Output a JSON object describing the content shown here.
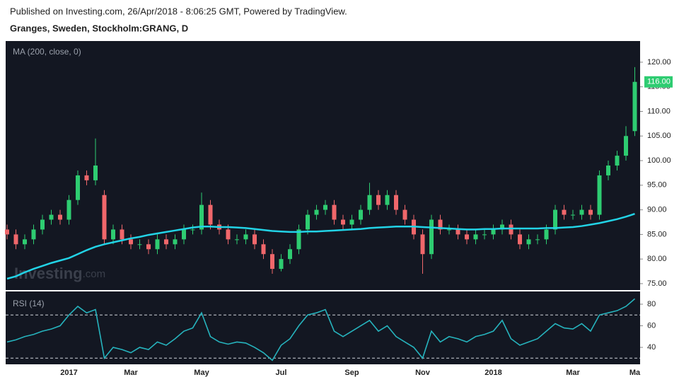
{
  "header": {
    "published": "Published on Investing.com, 26/Apr/2018 - 8:06:25 GMT, Powered by TradingView.",
    "symbol": "Granges, Sweden, Stockholm:GRANG, D"
  },
  "watermark": [
    "Investing",
    ".com"
  ],
  "chart_data": [
    {
      "type": "candlestick",
      "title": "MA (200, close, 0)",
      "open": [
        86,
        85,
        83,
        84,
        86,
        88,
        89,
        88,
        92,
        97,
        96,
        93,
        84,
        86,
        84,
        83,
        83,
        82,
        84,
        83,
        84,
        86,
        86,
        91,
        87,
        86,
        84,
        84,
        85,
        83,
        81,
        78,
        80,
        82,
        86,
        89,
        90,
        91,
        88,
        87,
        88,
        90,
        93,
        91,
        93,
        90,
        88,
        85,
        81,
        88,
        86,
        86,
        85,
        84,
        85,
        85,
        86,
        87,
        85,
        83,
        84,
        84,
        86,
        90,
        89,
        89,
        90,
        89,
        97,
        99,
        101,
        106
      ],
      "high": [
        87,
        86,
        85,
        87,
        89,
        90,
        90,
        93,
        98,
        98,
        104.5,
        94,
        87,
        87,
        85,
        84,
        84,
        85,
        85,
        85,
        87,
        87,
        93.5,
        92,
        88,
        87,
        85,
        86,
        86,
        84,
        82,
        81,
        83,
        87,
        90,
        91,
        92,
        92,
        89,
        89,
        91,
        95.5,
        94,
        94,
        94,
        91,
        89,
        86,
        89,
        89,
        87,
        87,
        86,
        86,
        86,
        87,
        88,
        88,
        86,
        85,
        85,
        87,
        91,
        91,
        90,
        91,
        91,
        98,
        100,
        102,
        107,
        119
      ],
      "low": [
        84,
        82,
        82,
        83,
        85,
        87,
        87,
        87,
        91,
        95,
        95,
        83,
        83,
        83,
        82,
        82,
        81,
        81,
        82,
        82,
        83,
        85,
        85,
        86,
        85,
        83,
        83,
        83,
        82,
        80,
        77,
        77.5,
        79,
        81,
        85,
        88,
        89,
        87,
        86,
        86,
        87,
        89,
        90,
        90,
        89,
        87,
        84,
        77,
        80,
        85,
        85,
        84,
        83,
        83,
        84,
        84,
        85,
        84,
        82,
        82,
        83,
        83,
        85,
        88,
        88,
        88,
        88,
        88,
        96,
        98,
        100,
        105
      ],
      "close": [
        85,
        83,
        84,
        86,
        88,
        89,
        88,
        92,
        97,
        96,
        99,
        84,
        86,
        84,
        83,
        83,
        82,
        84,
        83,
        84,
        86,
        86,
        91,
        87,
        86,
        84,
        84,
        85,
        83,
        81,
        78,
        80,
        82,
        86,
        89,
        90,
        91,
        88,
        87,
        88,
        90,
        93,
        91,
        93,
        90,
        88,
        85,
        81,
        88,
        86,
        86,
        85,
        84,
        85,
        85,
        86,
        87,
        85,
        83,
        84,
        84,
        86,
        90,
        89,
        89,
        90,
        89,
        97,
        99,
        101,
        105,
        116
      ],
      "up_color": "#2ecc71",
      "down_color": "#f0676b",
      "ma_values": [
        76,
        76.5,
        77.3,
        78,
        78.6,
        79.2,
        79.7,
        80.2,
        81,
        81.8,
        82.5,
        83,
        83.4,
        83.8,
        84.2,
        84.5,
        84.9,
        85.2,
        85.5,
        85.8,
        86.1,
        86.4,
        86.6,
        86.6,
        86.5,
        86.5,
        86.4,
        86.3,
        86.1,
        85.9,
        85.7,
        85.6,
        85.5,
        85.5,
        85.6,
        85.6,
        85.7,
        85.8,
        85.9,
        86,
        86.1,
        86.3,
        86.4,
        86.5,
        86.6,
        86.6,
        86.6,
        86.5,
        86.4,
        86.3,
        86.2,
        86.1,
        86,
        86,
        86.1,
        86.1,
        86.2,
        86.2,
        86.2,
        86.2,
        86.2,
        86.3,
        86.3,
        86.4,
        86.5,
        86.7,
        87,
        87.3,
        87.7,
        88.1,
        88.6,
        89.2
      ],
      "ma_color": "#22d3e6",
      "last_price": {
        "value": 116,
        "label": "116.00"
      },
      "ylim": [
        73.7,
        124.3
      ],
      "yticks": [
        {
          "value": 75,
          "label": "75.00"
        },
        {
          "value": 80,
          "label": "80.00"
        },
        {
          "value": 85,
          "label": "85.00"
        },
        {
          "value": 90,
          "label": "90.00"
        },
        {
          "value": 95,
          "label": "95.00"
        },
        {
          "value": 100,
          "label": "100.00"
        },
        {
          "value": 105,
          "label": "105.00"
        },
        {
          "value": 110,
          "label": "110.00"
        },
        {
          "value": 115,
          "label": "115.00"
        },
        {
          "value": 120,
          "label": "120.00"
        }
      ],
      "grid": false
    },
    {
      "type": "line",
      "title": "RSI (14)",
      "categories": [
        null,
        null,
        null,
        null,
        null,
        null,
        null,
        "2017",
        null,
        null,
        null,
        null,
        null,
        null,
        "Mar",
        null,
        null,
        null,
        null,
        null,
        null,
        null,
        "May",
        null,
        null,
        null,
        null,
        null,
        null,
        null,
        null,
        "Jul",
        null,
        null,
        null,
        null,
        null,
        null,
        null,
        "Sep",
        null,
        null,
        null,
        null,
        null,
        null,
        null,
        "Nov",
        null,
        null,
        null,
        null,
        null,
        null,
        null,
        "2018",
        null,
        null,
        null,
        null,
        null,
        null,
        null,
        null,
        "Mar",
        null,
        null,
        null,
        null,
        null,
        null,
        "Ma"
      ],
      "values": [
        45,
        47,
        50,
        52,
        55,
        57,
        60,
        70,
        78,
        72,
        75,
        30,
        40,
        38,
        35,
        40,
        38,
        45,
        42,
        48,
        55,
        58,
        72,
        50,
        45,
        43,
        45,
        44,
        40,
        35,
        28,
        42,
        48,
        60,
        70,
        72,
        75,
        55,
        50,
        55,
        60,
        65,
        55,
        60,
        50,
        45,
        40,
        30,
        55,
        45,
        50,
        48,
        45,
        50,
        52,
        55,
        65,
        48,
        42,
        45,
        48,
        55,
        62,
        58,
        57,
        62,
        55,
        70,
        72,
        74,
        78,
        85
      ],
      "color": "#26b3bd",
      "bands": [
        30,
        70
      ],
      "ylim": [
        24.3,
        91.8
      ],
      "yticks": [
        40,
        60,
        80
      ],
      "grid": false
    }
  ]
}
